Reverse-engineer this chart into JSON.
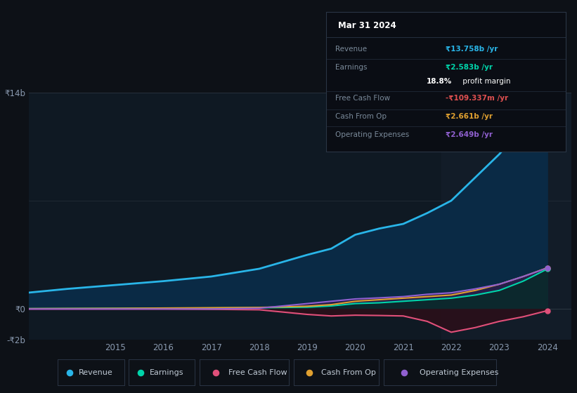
{
  "background_color": "#0d1117",
  "plot_bg_color": "#0f1923",
  "years": [
    2013,
    2014,
    2015,
    2016,
    2017,
    2018,
    2019,
    2019.5,
    2020,
    2020.5,
    2021,
    2021.5,
    2022,
    2022.5,
    2023,
    2023.5,
    2024
  ],
  "revenue": [
    1.0,
    1.3,
    1.55,
    1.8,
    2.1,
    2.6,
    3.5,
    3.9,
    4.8,
    5.2,
    5.5,
    6.2,
    7.0,
    8.5,
    10.0,
    11.8,
    13.758
  ],
  "earnings": [
    0.02,
    0.03,
    0.04,
    0.05,
    0.06,
    0.08,
    0.12,
    0.2,
    0.35,
    0.4,
    0.5,
    0.6,
    0.7,
    0.9,
    1.2,
    1.8,
    2.583
  ],
  "free_cash_flow": [
    0.0,
    0.0,
    0.0,
    0.0,
    -0.02,
    -0.05,
    -0.35,
    -0.45,
    -0.4,
    -0.42,
    -0.45,
    -0.8,
    -1.5,
    -1.2,
    -0.8,
    -0.5,
    -0.109
  ],
  "cash_from_op": [
    0.02,
    0.03,
    0.04,
    0.06,
    0.08,
    0.1,
    0.18,
    0.28,
    0.5,
    0.6,
    0.7,
    0.8,
    0.9,
    1.2,
    1.6,
    2.1,
    2.661
  ],
  "operating_expenses": [
    0.0,
    0.0,
    0.0,
    0.0,
    0.0,
    0.05,
    0.35,
    0.5,
    0.65,
    0.72,
    0.8,
    0.95,
    1.05,
    1.3,
    1.6,
    2.1,
    2.649
  ],
  "revenue_color": "#29b5e8",
  "earnings_color": "#00d4aa",
  "free_cash_flow_color": "#e0507a",
  "cash_from_op_color": "#e0a030",
  "operating_expenses_color": "#9060d0",
  "revenue_fill_color": "#0a2a45",
  "operating_expenses_fill_color": "#2a1e4a",
  "earnings_fill_color": "#0a2a2a",
  "ylim": [
    -2,
    14
  ],
  "xlim_start": 2013.2,
  "xlim_end": 2024.5,
  "ytick_labels": [
    "-₹2b",
    "₹0",
    "₹14b"
  ],
  "ytick_vals": [
    -2,
    0,
    14
  ],
  "xtick_vals": [
    2015,
    2016,
    2017,
    2018,
    2019,
    2020,
    2021,
    2022,
    2023,
    2024
  ],
  "xtick_labels": [
    "2015",
    "2016",
    "2017",
    "2018",
    "2019",
    "2020",
    "2021",
    "2022",
    "2023",
    "2024"
  ],
  "legend_items": [
    {
      "label": "Revenue",
      "color": "#29b5e8"
    },
    {
      "label": "Earnings",
      "color": "#00d4aa"
    },
    {
      "label": "Free Cash Flow",
      "color": "#e0507a"
    },
    {
      "label": "Cash From Op",
      "color": "#e0a030"
    },
    {
      "label": "Operating Expenses",
      "color": "#9060d0"
    }
  ],
  "tooltip_title": "Mar 31 2024",
  "tooltip_rows": [
    {
      "label": "Revenue",
      "value": "₹13.758b /yr",
      "value_color": "#29b5e8"
    },
    {
      "label": "Earnings",
      "value": "₹2.583b /yr",
      "value_color": "#00d4aa"
    },
    {
      "label": "",
      "value": "18.8% profit margin",
      "value_color": "#ffffff"
    },
    {
      "label": "Free Cash Flow",
      "value": "-₹109.337m /yr",
      "value_color": "#e05050"
    },
    {
      "label": "Cash From Op",
      "value": "₹2.661b /yr",
      "value_color": "#e0a030"
    },
    {
      "label": "Operating Expenses",
      "value": "₹2.649b /yr",
      "value_color": "#9060d0"
    }
  ]
}
